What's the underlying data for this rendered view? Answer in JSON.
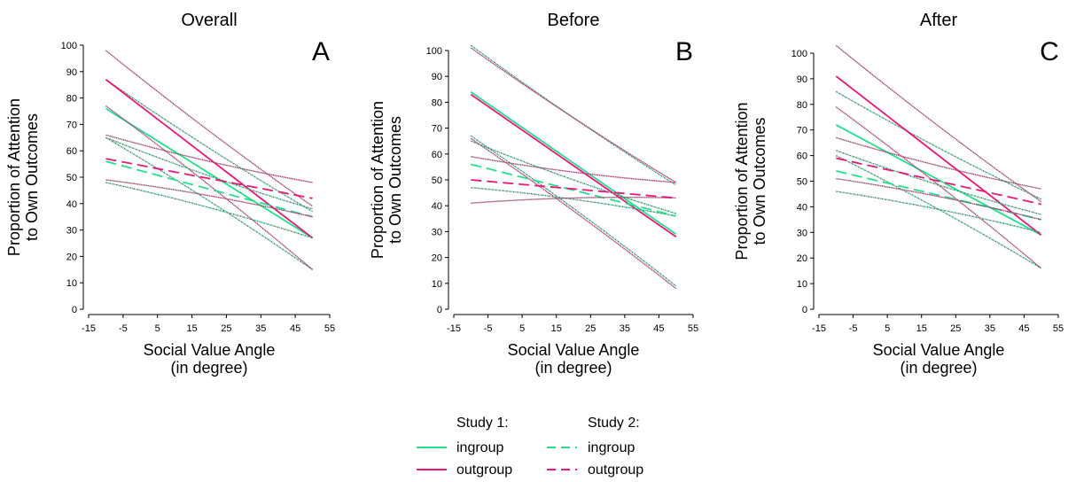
{
  "colors": {
    "ingroup": "#22e08a",
    "outgroup": "#e8197a",
    "axis": "#000000",
    "ci_gray": "#666666"
  },
  "legend": {
    "study1_header": "Study 1:",
    "study2_header": "Study 2:",
    "ingroup_label": "ingroup",
    "outgroup_label": "outgroup"
  },
  "chart_data": [
    {
      "type": "line",
      "title": "Overall",
      "panel_letter": "A",
      "xlabel": [
        "Social Value Angle",
        "(in degree)"
      ],
      "ylabel": [
        "Proportion of Attention",
        "to Own Outcomes"
      ],
      "xlim": [
        -15,
        55
      ],
      "ylim": [
        0,
        100
      ],
      "x_ticks": [
        -15,
        -5,
        5,
        15,
        25,
        35,
        45,
        55
      ],
      "y_ticks": [
        0,
        10,
        20,
        30,
        40,
        50,
        60,
        70,
        80,
        90,
        100
      ],
      "x_range": [
        -10,
        50
      ],
      "series": [
        {
          "study": 1,
          "group": "ingroup",
          "y": [
            76,
            27
          ],
          "ci_upper": [
            87,
            37
          ],
          "ci_lower": [
            65,
            15
          ]
        },
        {
          "study": 1,
          "group": "outgroup",
          "y": [
            87,
            27
          ],
          "ci_upper": [
            98,
            39
          ],
          "ci_lower": [
            77,
            15
          ]
        },
        {
          "study": 2,
          "group": "ingroup",
          "y": [
            56,
            35
          ],
          "ci_upper": [
            65,
            38
          ],
          "ci_lower": [
            48,
            27
          ]
        },
        {
          "study": 2,
          "group": "outgroup",
          "y": [
            57,
            42
          ],
          "ci_upper": [
            66,
            48
          ],
          "ci_lower": [
            49,
            35
          ]
        }
      ]
    },
    {
      "type": "line",
      "title": "Before",
      "panel_letter": "B",
      "xlabel": [
        "Social Value Angle",
        "(in degree)"
      ],
      "ylabel": [
        "Proportion of Attention",
        "to Own Outcomes"
      ],
      "xlim": [
        -15,
        55
      ],
      "ylim": [
        0,
        100
      ],
      "x_ticks": [
        -15,
        -5,
        5,
        15,
        25,
        35,
        45,
        55
      ],
      "y_ticks": [
        0,
        10,
        20,
        30,
        40,
        50,
        60,
        70,
        80,
        90,
        100
      ],
      "x_range": [
        -10,
        50
      ],
      "series": [
        {
          "study": 1,
          "group": "ingroup",
          "y": [
            84,
            29
          ],
          "ci_upper": [
            102,
            48
          ],
          "ci_lower": [
            67,
            9
          ]
        },
        {
          "study": 1,
          "group": "outgroup",
          "y": [
            83,
            28
          ],
          "ci_upper": [
            101,
            49
          ],
          "ci_lower": [
            66,
            8
          ]
        },
        {
          "study": 2,
          "group": "ingroup",
          "y": [
            56,
            36
          ],
          "ci_upper": [
            65,
            37
          ],
          "ci_lower": [
            47,
            36
          ]
        },
        {
          "study": 2,
          "group": "outgroup",
          "y": [
            50,
            43
          ],
          "ci_upper": [
            59,
            49
          ],
          "ci_lower": [
            41,
            43
          ]
        }
      ]
    },
    {
      "type": "line",
      "title": "After",
      "panel_letter": "C",
      "xlabel": [
        "Social Value Angle",
        "(in degree)"
      ],
      "ylabel": [
        "Proportion of Attention",
        "to Own Outcomes"
      ],
      "xlim": [
        -15,
        55
      ],
      "ylim": [
        0,
        100
      ],
      "x_ticks": [
        -15,
        -5,
        5,
        15,
        25,
        35,
        45,
        55
      ],
      "y_ticks": [
        0,
        10,
        20,
        30,
        40,
        50,
        60,
        70,
        80,
        90,
        100
      ],
      "x_range": [
        -10,
        50
      ],
      "series": [
        {
          "study": 1,
          "group": "ingroup",
          "y": [
            72,
            29
          ],
          "ci_upper": [
            85,
            43
          ],
          "ci_lower": [
            60,
            16
          ]
        },
        {
          "study": 1,
          "group": "outgroup",
          "y": [
            91,
            29
          ],
          "ci_upper": [
            103,
            42
          ],
          "ci_lower": [
            79,
            16
          ]
        },
        {
          "study": 2,
          "group": "ingroup",
          "y": [
            54,
            35
          ],
          "ci_upper": [
            62,
            37
          ],
          "ci_lower": [
            46,
            30
          ]
        },
        {
          "study": 2,
          "group": "outgroup",
          "y": [
            59,
            41
          ],
          "ci_upper": [
            67,
            47
          ],
          "ci_lower": [
            51,
            35
          ]
        }
      ]
    }
  ]
}
